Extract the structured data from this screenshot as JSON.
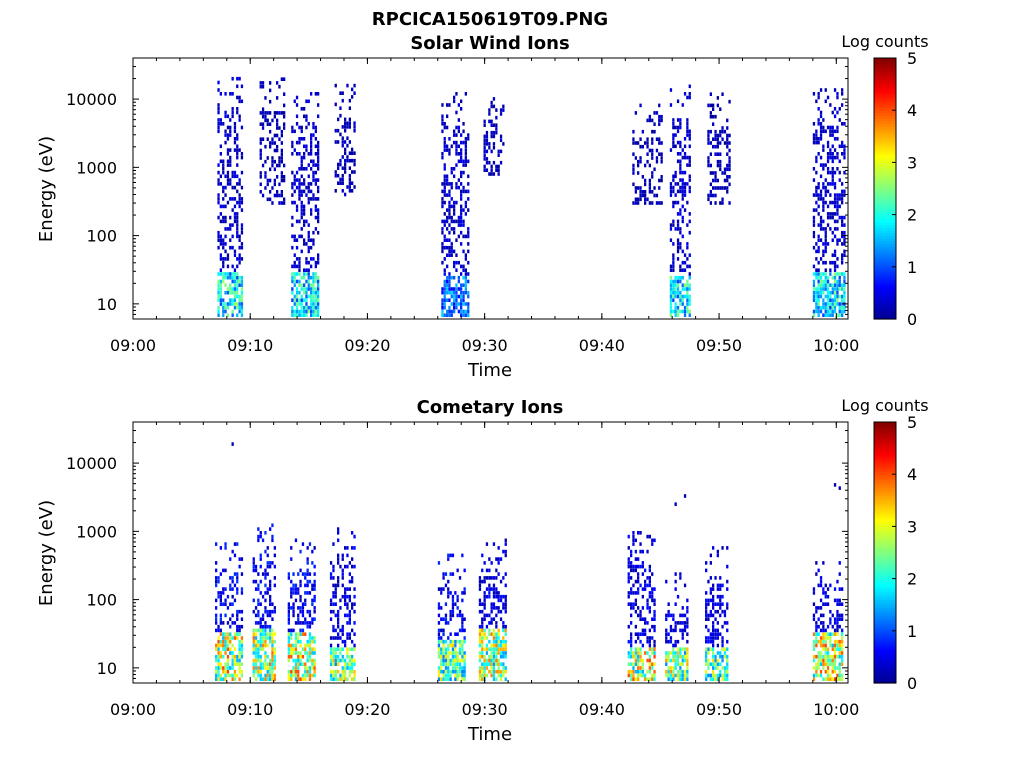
{
  "figure": {
    "filename": "RPCICA150619T09.PNG"
  },
  "colormap": {
    "name": "jet",
    "stops": [
      "#00008f",
      "#0000ff",
      "#0080ff",
      "#00ffff",
      "#80ff80",
      "#ffff00",
      "#ff8000",
      "#ff0000",
      "#800000"
    ]
  },
  "chart_data": [
    {
      "type": "heatmap",
      "title": "Solar Wind Ions",
      "xlabel": "Time",
      "ylabel": "Energy (eV)",
      "yscale": "log",
      "ylim": [
        6,
        40000
      ],
      "xlim_minutes": [
        0,
        61
      ],
      "xticks": [
        "09:00",
        "09:10",
        "09:20",
        "09:30",
        "09:40",
        "09:50",
        "10:00"
      ],
      "yticks": [
        10,
        100,
        1000,
        10000
      ],
      "yticklabels": [
        "10",
        "100",
        "1000",
        "10000"
      ],
      "colorbar": {
        "label": "Log counts",
        "range": [
          0,
          5
        ],
        "ticks": [
          "0",
          "1",
          "2",
          "3",
          "4",
          "5"
        ]
      },
      "bursts": [
        {
          "t_start": 7.2,
          "t_end": 9.2,
          "e_low": 6,
          "e_high": 20000,
          "core_high": 30,
          "core_level": 1.9,
          "level": 0.3
        },
        {
          "t_start": 10.8,
          "t_end": 12.8,
          "e_low": 300,
          "e_high": 22000,
          "core_high": 0,
          "core_level": 0,
          "level": 0.2
        },
        {
          "t_start": 13.5,
          "t_end": 15.7,
          "e_low": 6,
          "e_high": 13000,
          "core_high": 30,
          "core_level": 1.8,
          "level": 0.3
        },
        {
          "t_start": 17.2,
          "t_end": 18.8,
          "e_low": 400,
          "e_high": 17000,
          "core_high": 0,
          "core_level": 0,
          "level": 0.2
        },
        {
          "t_start": 26.3,
          "t_end": 28.6,
          "e_low": 6,
          "e_high": 13000,
          "core_high": 25,
          "core_level": 1.2,
          "level": 0.3
        },
        {
          "t_start": 29.9,
          "t_end": 31.6,
          "e_low": 800,
          "e_high": 12000,
          "core_high": 0,
          "core_level": 0,
          "level": 0.2
        },
        {
          "t_start": 42.6,
          "t_end": 45.2,
          "e_low": 300,
          "e_high": 9000,
          "core_high": 0,
          "core_level": 0,
          "level": 0.2
        },
        {
          "t_start": 45.8,
          "t_end": 47.6,
          "e_low": 6,
          "e_high": 17000,
          "core_high": 25,
          "core_level": 1.9,
          "level": 0.3
        },
        {
          "t_start": 49.0,
          "t_end": 51.0,
          "e_low": 300,
          "e_high": 12000,
          "core_high": 0,
          "core_level": 0,
          "level": 0.2
        },
        {
          "t_start": 58.0,
          "t_end": 60.7,
          "e_low": 6,
          "e_high": 14000,
          "core_high": 30,
          "core_level": 1.8,
          "level": 0.3
        }
      ]
    },
    {
      "type": "heatmap",
      "title": "Cometary Ions",
      "xlabel": "Time",
      "ylabel": "Energy (eV)",
      "yscale": "log",
      "ylim": [
        6,
        40000
      ],
      "xlim_minutes": [
        0,
        61
      ],
      "xticks": [
        "09:00",
        "09:10",
        "09:20",
        "09:30",
        "09:40",
        "09:50",
        "10:00"
      ],
      "yticks": [
        10,
        100,
        1000,
        10000
      ],
      "yticklabels": [
        "10",
        "100",
        "1000",
        "10000"
      ],
      "colorbar": {
        "label": "Log counts",
        "range": [
          0,
          5
        ],
        "ticks": [
          "0",
          "1",
          "2",
          "3",
          "4",
          "5"
        ]
      },
      "bursts": [
        {
          "t_start": 7.0,
          "t_end": 9.3,
          "e_low": 6,
          "e_high": 700,
          "core_high": 35,
          "core_level": 2.9,
          "level": 0.5
        },
        {
          "t_start": 10.2,
          "t_end": 12.0,
          "e_low": 6,
          "e_high": 1300,
          "core_high": 40,
          "core_level": 2.8,
          "level": 0.5
        },
        {
          "t_start": 13.2,
          "t_end": 15.5,
          "e_low": 6,
          "e_high": 800,
          "core_high": 35,
          "core_level": 2.9,
          "level": 0.5
        },
        {
          "t_start": 16.8,
          "t_end": 18.8,
          "e_low": 6,
          "e_high": 1100,
          "core_high": 20,
          "core_level": 2.5,
          "level": 0.4
        },
        {
          "t_start": 26.0,
          "t_end": 28.3,
          "e_low": 6,
          "e_high": 500,
          "core_high": 25,
          "core_level": 2.4,
          "level": 0.5
        },
        {
          "t_start": 29.5,
          "t_end": 31.8,
          "e_low": 6,
          "e_high": 800,
          "core_high": 40,
          "core_level": 2.7,
          "level": 0.4
        },
        {
          "t_start": 42.2,
          "t_end": 44.6,
          "e_low": 6,
          "e_high": 1200,
          "core_high": 20,
          "core_level": 2.9,
          "level": 0.4
        },
        {
          "t_start": 45.4,
          "t_end": 47.4,
          "e_low": 6,
          "e_high": 250,
          "core_high": 20,
          "core_level": 2.6,
          "level": 0.4
        },
        {
          "t_start": 48.8,
          "t_end": 50.8,
          "e_low": 6,
          "e_high": 600,
          "core_high": 20,
          "core_level": 2.4,
          "level": 0.4
        },
        {
          "t_start": 58.0,
          "t_end": 60.5,
          "e_low": 6,
          "e_high": 350,
          "core_high": 35,
          "core_level": 2.9,
          "level": 0.4
        }
      ],
      "isolated_points": [
        {
          "t": 8.4,
          "e": 19000
        },
        {
          "t": 46.2,
          "e": 2500
        },
        {
          "t": 47.0,
          "e": 3300
        },
        {
          "t": 59.8,
          "e": 4800
        },
        {
          "t": 60.2,
          "e": 4300
        }
      ]
    }
  ]
}
